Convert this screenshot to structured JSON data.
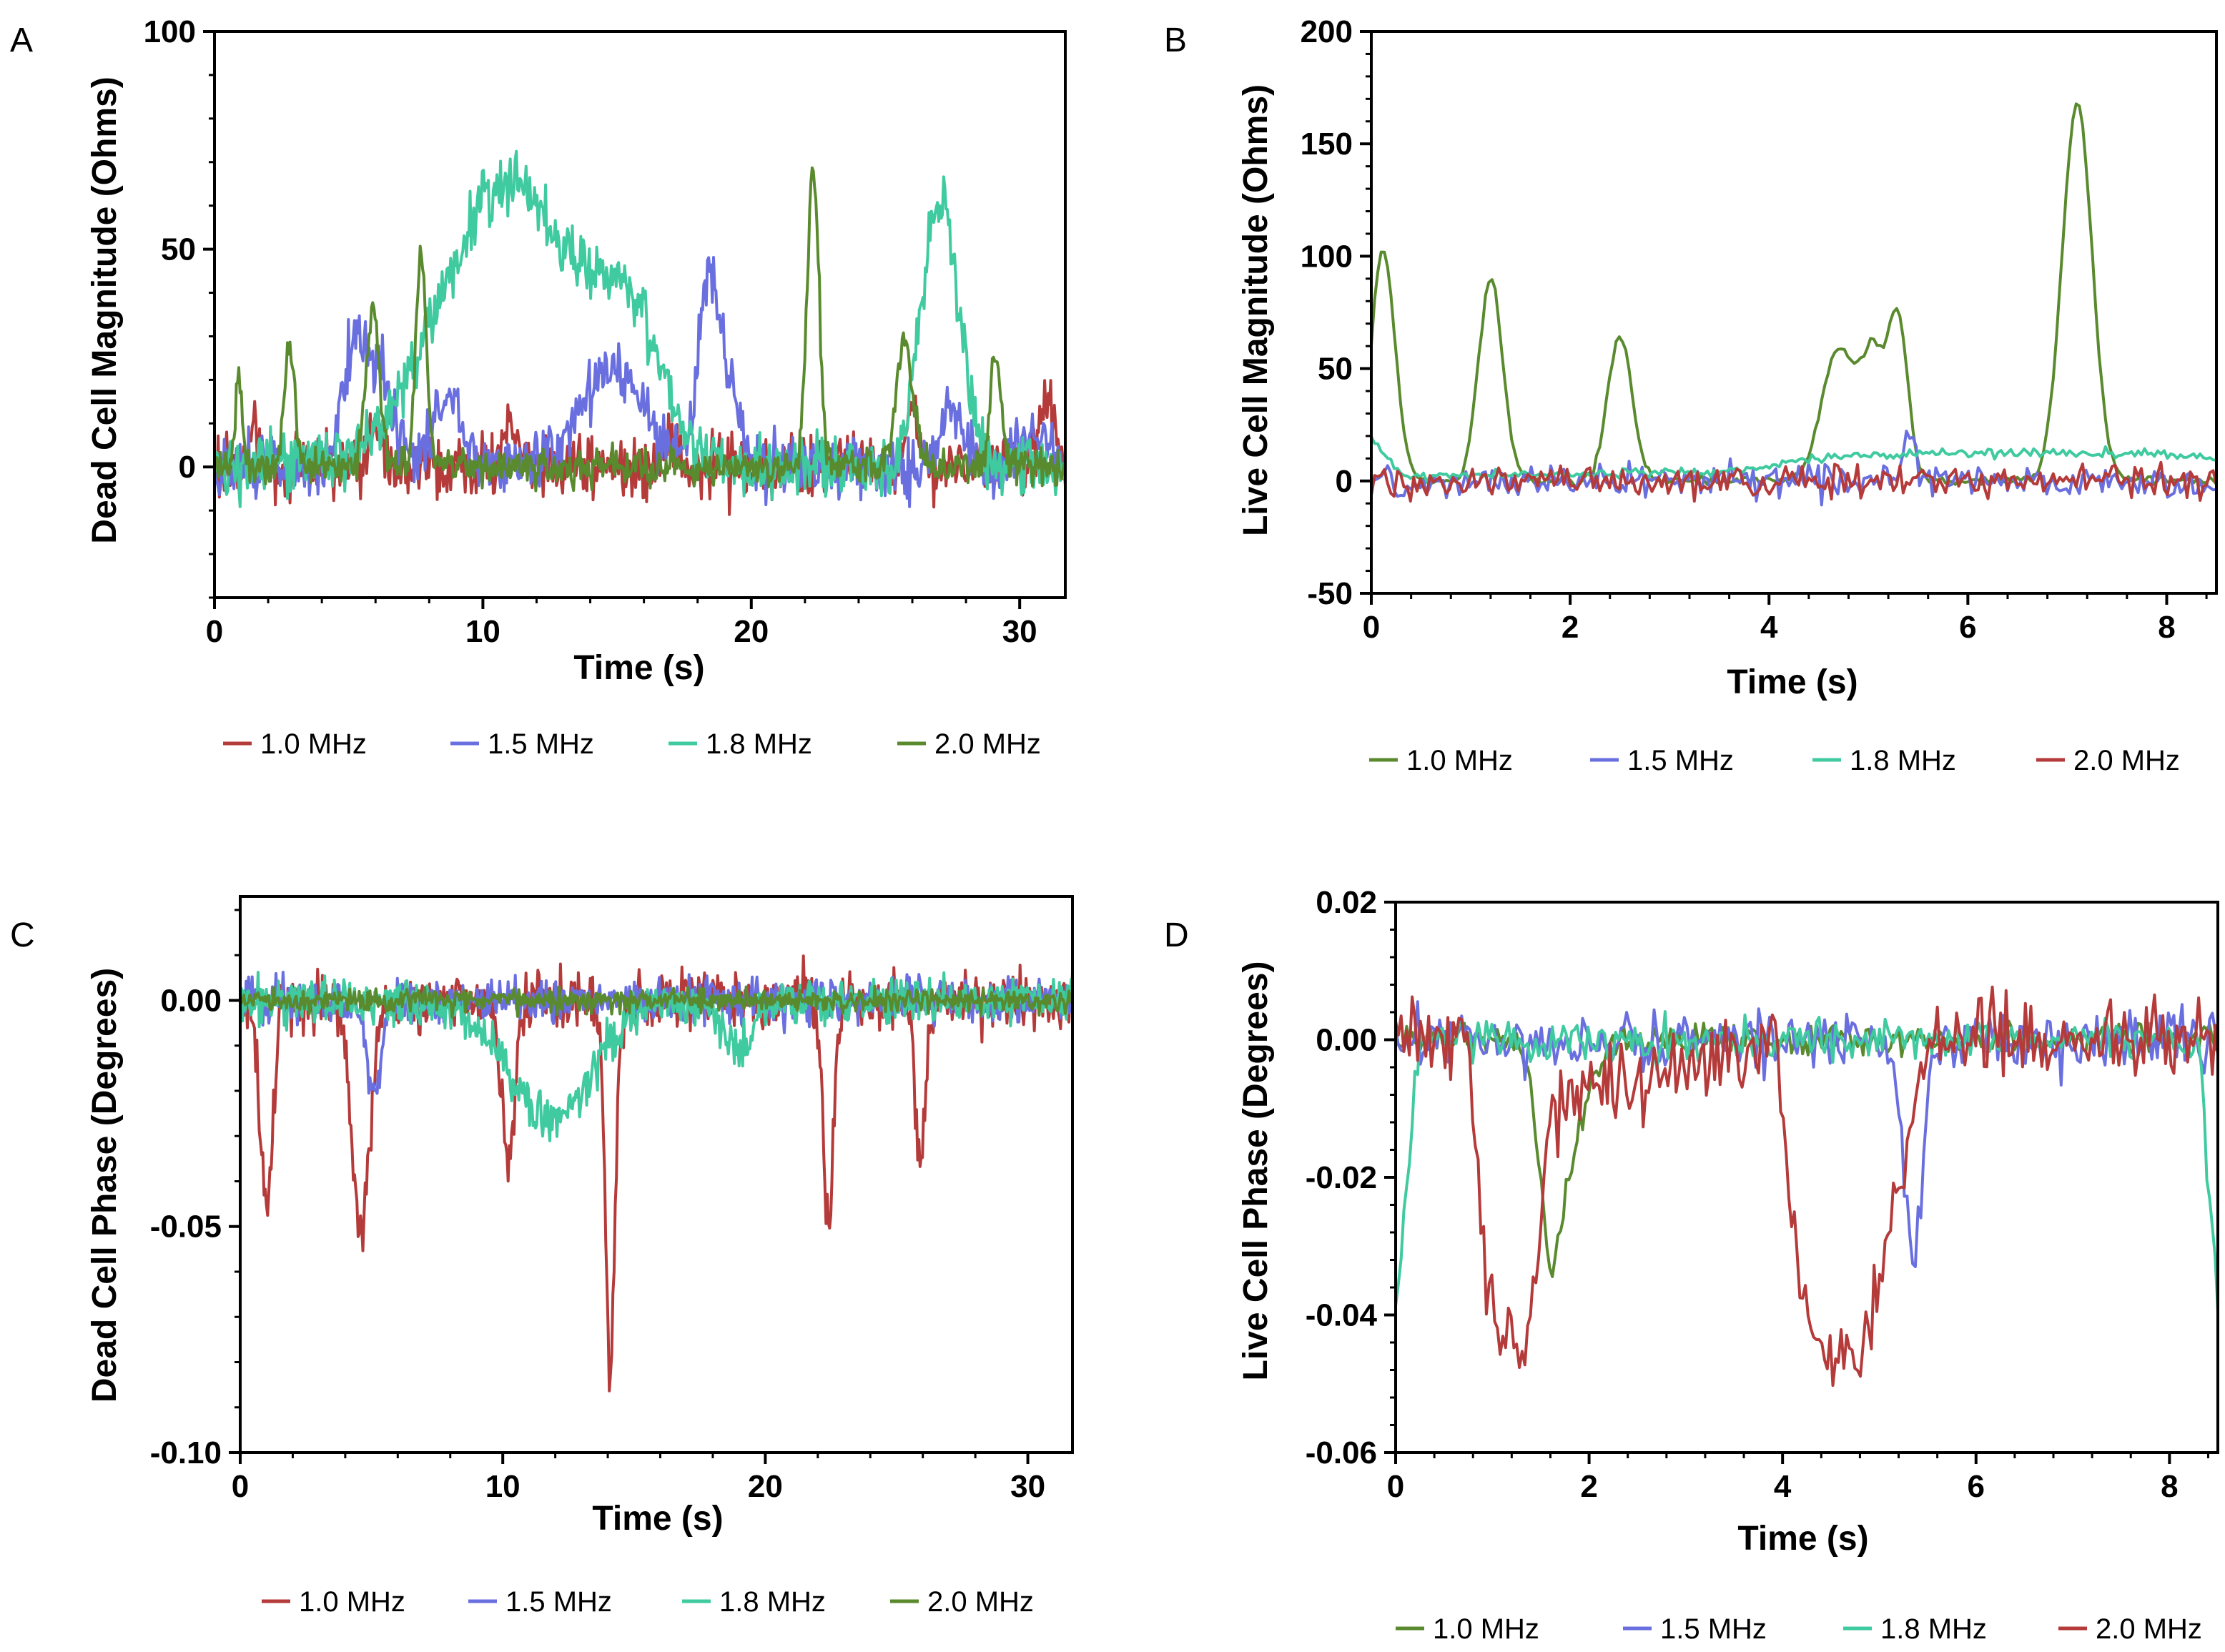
{
  "colors": {
    "s1_0": "#5a8a2e",
    "s1_5": "#6a6fe0",
    "s1_8": "#3fca9f",
    "s2_0": "#b53a3a"
  },
  "chart_data": [
    {
      "panel": "A",
      "type": "line",
      "xlabel": "Time (s)",
      "ylabel": "Dead Cell Magnitude (Ohms)",
      "xlim": [
        0,
        31.7
      ],
      "ylim": [
        -30,
        100
      ],
      "xticks": [
        0,
        10,
        20,
        30
      ],
      "xtick_labels": [
        "0",
        "10",
        "20",
        "30"
      ],
      "yticks": [
        0,
        50,
        100
      ],
      "ytick_labels": [
        "0",
        "50",
        "100"
      ],
      "legend": [
        "1.0 MHz",
        "1.5 MHz",
        "1.8 MHz",
        "2.0 MHz"
      ],
      "n_points": 700,
      "series": [
        {
          "name": "1.0 MHz",
          "key": "s2_0",
          "noise": 7,
          "baseline": [],
          "peaks": [
            [
              1.5,
              12,
              0.12
            ],
            [
              6,
              8,
              0.3
            ],
            [
              11,
              8,
              0.3
            ],
            [
              17,
              6,
              0.3
            ],
            [
              26,
              12,
              0.25
            ],
            [
              31,
              15,
              0.3
            ]
          ]
        },
        {
          "name": "1.5 MHz",
          "key": "s1_5",
          "noise": 7,
          "baseline": [],
          "peaks": [
            [
              5.3,
              30,
              0.5
            ],
            [
              6.3,
              18,
              0.4
            ],
            [
              8.7,
              18,
              0.5
            ],
            [
              14.8,
              22,
              1.2
            ],
            [
              18.4,
              38,
              0.4
            ],
            [
              19.1,
              15,
              0.5
            ],
            [
              27.5,
              12,
              0.5
            ],
            [
              30.5,
              10,
              0.5
            ]
          ]
        },
        {
          "name": "1.8 MHz",
          "key": "s1_8",
          "noise": 7,
          "baseline": [],
          "peaks": [
            [
              11,
              66,
              2.5
            ],
            [
              15.5,
              28,
              1.2
            ],
            [
              26.8,
              40,
              0.6
            ],
            [
              27.4,
              30,
              0.6
            ]
          ]
        },
        {
          "name": "2.0 MHz",
          "key": "s1_0",
          "noise": 4,
          "baseline": [],
          "peaks": [
            [
              0.9,
              22,
              0.12
            ],
            [
              2.8,
              28,
              0.2
            ],
            [
              5.9,
              36,
              0.25
            ],
            [
              7.7,
              50,
              0.2
            ],
            [
              22.3,
              68,
              0.22
            ],
            [
              25.7,
              28,
              0.3
            ],
            [
              29.1,
              26,
              0.2
            ]
          ]
        }
      ]
    },
    {
      "panel": "B",
      "type": "line",
      "xlabel": "Time (s)",
      "ylabel": "Live Cell Magnitude (Ohms)",
      "xlim": [
        0,
        8.5
      ],
      "ylim": [
        -50,
        200
      ],
      "xticks": [
        0,
        2,
        4,
        6,
        8
      ],
      "xtick_labels": [
        "0",
        "2",
        "4",
        "6",
        "8"
      ],
      "yticks": [
        -50,
        0,
        50,
        100,
        150,
        200
      ],
      "ytick_labels": [
        "-50",
        "0",
        "50",
        "100",
        "150",
        "200"
      ],
      "legend": [
        "1.0 MHz",
        "1.5 MHz",
        "1.8 MHz",
        "2.0 MHz"
      ],
      "n_points": 260,
      "series": [
        {
          "name": "1.0 MHz",
          "key": "s1_0",
          "noise": 2,
          "baseline": [],
          "peaks": [
            [
              0.12,
              103,
              0.12
            ],
            [
              1.2,
              90,
              0.12
            ],
            [
              2.5,
              65,
              0.12
            ],
            [
              4.7,
              58,
              0.17
            ],
            [
              5.05,
              52,
              0.12
            ],
            [
              5.3,
              70,
              0.1
            ],
            [
              7.1,
              168,
              0.15
            ]
          ]
        },
        {
          "name": "1.5 MHz",
          "key": "s1_5",
          "noise": 7,
          "baseline": [],
          "peaks": [
            [
              5.4,
              22,
              0.06
            ]
          ]
        },
        {
          "name": "1.8 MHz",
          "key": "s1_8",
          "noise": 2,
          "baseline": [
            [
              0,
              20
            ],
            [
              0.3,
              2
            ],
            [
              3.5,
              4
            ],
            [
              4.5,
              10
            ],
            [
              6,
              13
            ],
            [
              8,
              12
            ],
            [
              8.5,
              10
            ]
          ],
          "peaks": []
        },
        {
          "name": "2.0 MHz",
          "key": "s2_0",
          "noise": 7,
          "baseline": [],
          "peaks": []
        }
      ]
    },
    {
      "panel": "C",
      "type": "line",
      "xlabel": "Time (s)",
      "ylabel": "Dead Cell Phase (Degrees)",
      "xlim": [
        0,
        31.7
      ],
      "ylim": [
        -0.1,
        0.023
      ],
      "xticks": [
        0,
        10,
        20,
        30
      ],
      "xtick_labels": [
        "0",
        "10",
        "20",
        "30"
      ],
      "yticks": [
        -0.1,
        -0.05,
        0
      ],
      "ytick_labels": [
        "-0.10",
        "-0.05",
        "0.00"
      ],
      "legend": [
        "1.0 MHz",
        "1.5 MHz",
        "1.8 MHz",
        "2.0 MHz"
      ],
      "n_points": 700,
      "series": [
        {
          "name": "1.0 MHz",
          "key": "s2_0",
          "noise": 0.006,
          "baseline": [],
          "peaks": [
            [
              1.0,
              -0.045,
              0.25
            ],
            [
              4.6,
              -0.05,
              0.35
            ],
            [
              10.2,
              -0.035,
              0.25
            ],
            [
              14.1,
              -0.083,
              0.18
            ],
            [
              22.4,
              -0.048,
              0.2
            ],
            [
              25.9,
              -0.035,
              0.2
            ]
          ]
        },
        {
          "name": "1.5 MHz",
          "key": "s1_5",
          "noise": 0.005,
          "baseline": [],
          "peaks": [
            [
              5.1,
              -0.02,
              0.3
            ]
          ]
        },
        {
          "name": "1.8 MHz",
          "key": "s1_8",
          "noise": 0.005,
          "baseline": [],
          "peaks": [
            [
              11.8,
              -0.026,
              1.6
            ],
            [
              19,
              -0.012,
              0.6
            ]
          ]
        },
        {
          "name": "2.0 MHz",
          "key": "s1_0",
          "noise": 0.0025,
          "baseline": [],
          "peaks": []
        }
      ]
    },
    {
      "panel": "D",
      "type": "line",
      "xlabel": "Time (s)",
      "ylabel": "Live Cell Phase (Degrees)",
      "xlim": [
        0,
        8.5
      ],
      "ylim": [
        -0.06,
        0.02
      ],
      "xticks": [
        0,
        2,
        4,
        6,
        8
      ],
      "xtick_labels": [
        "0",
        "2",
        "4",
        "6",
        "8"
      ],
      "yticks": [
        -0.06,
        -0.04,
        -0.02,
        0,
        0.02
      ],
      "ytick_labels": [
        "-0.06",
        "-0.04",
        "-0.02",
        "0.00",
        "0.02"
      ],
      "legend": [
        "1.0 MHz",
        "1.5 MHz",
        "1.8 MHz",
        "2.0 MHz"
      ],
      "n_points": 300,
      "series": [
        {
          "name": "1.0 MHz",
          "key": "s1_0",
          "noise": 0.0022,
          "baseline": [],
          "peaks": [
            [
              1.6,
              -0.03,
              0.12
            ],
            [
              1.85,
              -0.012,
              0.15
            ]
          ]
        },
        {
          "name": "1.5 MHz",
          "key": "s1_5",
          "noise": 0.0042,
          "baseline": [],
          "peaks": [
            [
              5.35,
              -0.03,
              0.1
            ]
          ]
        },
        {
          "name": "1.8 MHz",
          "key": "s1_8",
          "noise": 0.003,
          "baseline": [
            [
              0,
              -0.04
            ],
            [
              0.25,
              0
            ],
            [
              8.3,
              0
            ],
            [
              8.5,
              -0.038
            ]
          ],
          "peaks": []
        },
        {
          "name": "2.0 MHz",
          "key": "s2_0",
          "noise": 0.0055,
          "baseline": [
            [
              0,
              0
            ],
            [
              0.75,
              0
            ],
            [
              0.95,
              -0.04
            ],
            [
              1.4,
              -0.042
            ],
            [
              1.6,
              -0.01
            ],
            [
              3.95,
              0
            ],
            [
              4.05,
              -0.02
            ],
            [
              4.3,
              -0.045
            ],
            [
              4.8,
              -0.047
            ],
            [
              5.2,
              -0.02
            ],
            [
              5.5,
              0
            ],
            [
              8.5,
              0
            ]
          ],
          "peaks": []
        }
      ]
    }
  ]
}
